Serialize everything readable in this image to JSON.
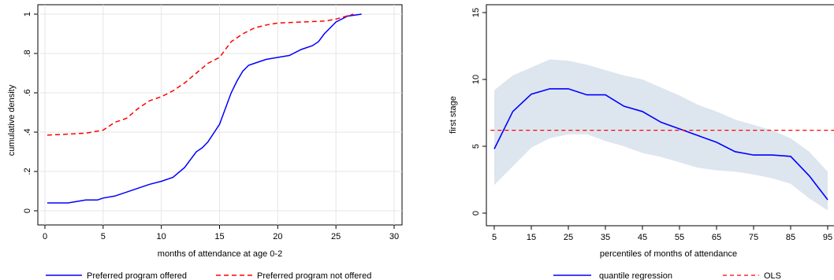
{
  "chart_data": [
    {
      "type": "line",
      "xlabel": "months of attendance at age 0-2",
      "ylabel": "cumulative density",
      "xlim": [
        0,
        30
      ],
      "ylim": [
        0,
        1
      ],
      "x_ticks": [
        "0",
        "5",
        "10",
        "15",
        "20",
        "25",
        "30"
      ],
      "y_ticks": [
        "0",
        ".2",
        ".4",
        ".6",
        ".8",
        "1"
      ],
      "grid": true,
      "legend_position": "bottom",
      "series": [
        {
          "name": "Preferred program offered",
          "color": "#0000ff",
          "style": "solid",
          "x": [
            0.2,
            2,
            3,
            3.5,
            4.5,
            5,
            6,
            7,
            8,
            9,
            10,
            11,
            12,
            13,
            13.5,
            14,
            15,
            15.5,
            16,
            16.5,
            17,
            17.5,
            18,
            19,
            20,
            21,
            22,
            23,
            23.5,
            24,
            25,
            26,
            27.2
          ],
          "y": [
            0.04,
            0.04,
            0.05,
            0.055,
            0.055,
            0.065,
            0.075,
            0.095,
            0.115,
            0.135,
            0.15,
            0.17,
            0.22,
            0.3,
            0.32,
            0.35,
            0.44,
            0.52,
            0.6,
            0.66,
            0.71,
            0.74,
            0.75,
            0.77,
            0.78,
            0.79,
            0.82,
            0.84,
            0.86,
            0.9,
            0.96,
            0.99,
            1.0
          ]
        },
        {
          "name": "Preferred program not offered",
          "color": "#ff0000",
          "style": "dashed",
          "x": [
            0.2,
            2,
            3.5,
            5,
            6,
            7,
            8,
            9,
            10,
            11,
            12,
            13,
            14,
            15,
            15.5,
            16,
            17,
            18,
            19,
            20,
            22,
            24,
            25,
            26.5
          ],
          "y": [
            0.385,
            0.39,
            0.395,
            0.41,
            0.45,
            0.47,
            0.52,
            0.56,
            0.58,
            0.61,
            0.65,
            0.7,
            0.75,
            0.78,
            0.82,
            0.86,
            0.9,
            0.93,
            0.945,
            0.955,
            0.96,
            0.965,
            0.975,
            1.0
          ]
        }
      ]
    },
    {
      "type": "line",
      "xlabel": "percentiles of months of attendance",
      "ylabel": "first stage",
      "xlim": [
        4,
        98
      ],
      "ylim": [
        -1,
        16
      ],
      "x_ticks": [
        "5",
        "15",
        "25",
        "35",
        "45",
        "55",
        "65",
        "75",
        "85",
        "95"
      ],
      "y_ticks": [
        "0",
        "5",
        "10",
        "15"
      ],
      "grid": false,
      "legend_position": "bottom",
      "band": {
        "x": [
          5,
          10,
          15,
          20,
          25,
          30,
          35,
          40,
          45,
          50,
          55,
          60,
          65,
          70,
          75,
          80,
          85,
          90,
          95
        ],
        "lower": [
          2.1,
          3.5,
          4.9,
          5.6,
          5.9,
          5.9,
          5.4,
          5.0,
          4.5,
          4.2,
          3.8,
          3.4,
          3.2,
          3.1,
          2.9,
          2.6,
          2.2,
          1.1,
          0.2
        ],
        "upper": [
          9.2,
          10.3,
          10.9,
          11.5,
          11.4,
          11.1,
          10.7,
          10.3,
          10.0,
          9.4,
          8.8,
          8.1,
          7.6,
          7.0,
          6.6,
          6.2,
          5.6,
          4.6,
          3.1
        ],
        "color": "#dde6ee"
      },
      "series": [
        {
          "name": "quantile regression",
          "color": "#0000ff",
          "style": "solid",
          "x": [
            5,
            10,
            15,
            20,
            25,
            30,
            35,
            40,
            45,
            50,
            55,
            60,
            65,
            70,
            75,
            80,
            85,
            90,
            95
          ],
          "y": [
            4.8,
            7.6,
            8.9,
            9.3,
            9.3,
            8.85,
            8.85,
            8.0,
            7.6,
            6.8,
            6.3,
            5.8,
            5.3,
            4.6,
            4.35,
            4.35,
            4.25,
            2.8,
            1.0
          ]
        },
        {
          "name": "OLS",
          "color": "#ff0000",
          "style": "dashed",
          "x": [
            4,
            98
          ],
          "y": [
            6.2,
            6.2
          ]
        }
      ]
    }
  ]
}
